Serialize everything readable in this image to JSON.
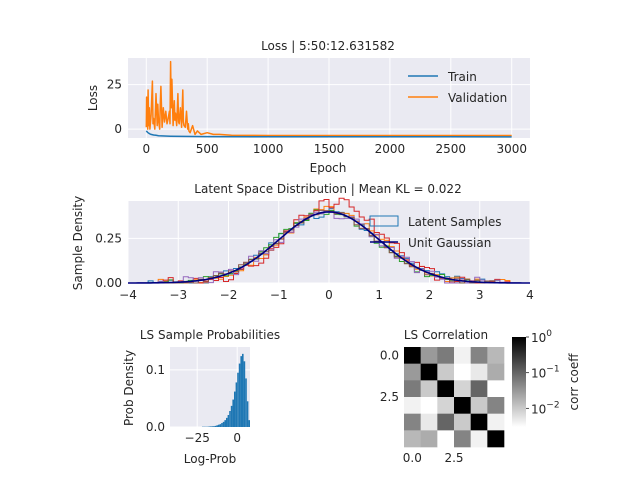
{
  "chart_data": [
    {
      "type": "line",
      "title": "Loss | 5:50:12.631582",
      "xlabel": "Epoch",
      "ylabel": "Loss",
      "xlim": [
        -150,
        3150
      ],
      "ylim": [
        -5,
        40
      ],
      "xticks": [
        0,
        500,
        1000,
        1500,
        2000,
        2500,
        3000
      ],
      "yticks": [
        0,
        25
      ],
      "grid": true,
      "legend": "top-right",
      "series": [
        {
          "name": "Train",
          "color": "#1f77b4",
          "x": [
            0,
            10,
            20,
            30,
            40,
            60,
            80,
            100,
            150,
            200,
            300,
            500,
            1000,
            1500,
            2000,
            2500,
            3000
          ],
          "y": [
            -1,
            -1.8,
            -2.3,
            -2.7,
            -3,
            -3.3,
            -3.5,
            -3.7,
            -3.9,
            -4.0,
            -4.1,
            -4.2,
            -4.3,
            -4.3,
            -4.3,
            -4.35,
            -4.4
          ]
        },
        {
          "name": "Validation",
          "color": "#ff7f0e",
          "x": [
            0,
            3,
            6,
            9,
            12,
            15,
            20,
            25,
            30,
            40,
            50,
            55,
            60,
            70,
            80,
            90,
            95,
            100,
            110,
            115,
            120,
            130,
            140,
            150,
            160,
            170,
            180,
            190,
            195,
            200,
            205,
            210,
            220,
            230,
            235,
            240,
            250,
            260,
            265,
            270,
            280,
            290,
            300,
            305,
            310,
            320,
            330,
            340,
            345,
            350,
            360,
            380,
            400,
            420,
            450,
            500,
            550,
            600,
            700,
            1000,
            1500,
            2000,
            2500,
            3000
          ],
          "y": [
            1,
            18,
            3,
            15,
            0,
            22,
            2,
            12,
            0,
            8,
            27,
            3,
            6,
            0,
            20,
            2,
            14,
            5,
            0,
            15,
            24,
            1,
            12,
            4,
            10,
            3,
            6,
            10,
            3,
            38,
            12,
            28,
            2,
            16,
            5,
            9,
            2,
            20,
            4,
            3,
            12,
            1,
            22,
            4,
            2,
            1,
            10,
            0,
            3,
            -1,
            -2,
            2,
            -3,
            -1,
            -3,
            -2,
            -3,
            -3,
            -3.5,
            -3.6,
            -3.6,
            -3.6,
            -3.6,
            -3.6
          ]
        }
      ]
    },
    {
      "type": "histogram",
      "title": "Latent Space Distribution | Mean KL = 0.022",
      "xlabel": "",
      "ylabel": "Sample Density",
      "xlim": [
        -4,
        4
      ],
      "ylim": [
        0,
        0.46
      ],
      "xticks": [
        -4,
        -3,
        -2,
        -1,
        0,
        1,
        2,
        3,
        4
      ],
      "yticks": [
        0.0,
        0.25
      ],
      "ytick_labels": [
        "0.00",
        "0.25"
      ],
      "grid": true,
      "legend": "top-right",
      "legend_entries": [
        {
          "name": "Latent Samples",
          "color": "#1f77b4"
        },
        {
          "name": "Unit Gaussian",
          "color": "#000080"
        }
      ],
      "series": [
        {
          "name": "Latent Samples",
          "color": "#1f77b4",
          "mu": 0.0,
          "sigma": 1.0,
          "peak_scale": 1.0,
          "jitter": 0.025,
          "seed": 3
        },
        {
          "name": "",
          "color": "#ff7f0e",
          "mu": 0.05,
          "sigma": 0.98,
          "peak_scale": 1.02,
          "jitter": 0.02,
          "seed": 7
        },
        {
          "name": "",
          "color": "#2ca02c",
          "mu": -0.05,
          "sigma": 1.0,
          "peak_scale": 1.0,
          "jitter": 0.02,
          "seed": 11
        },
        {
          "name": "",
          "color": "#d62728",
          "mu": 0.12,
          "sigma": 0.95,
          "peak_scale": 1.08,
          "jitter": 0.03,
          "seed": 19
        },
        {
          "name": "",
          "color": "#9467bd",
          "mu": 0.0,
          "sigma": 1.02,
          "peak_scale": 0.98,
          "jitter": 0.03,
          "seed": 23
        },
        {
          "name": "",
          "color": "#8c564b",
          "mu": -0.02,
          "sigma": 1.0,
          "peak_scale": 1.0,
          "jitter": 0.015,
          "seed": 29
        }
      ],
      "reference_curve": {
        "name": "Unit Gaussian",
        "color": "#000080",
        "mu": 0,
        "sigma": 1
      }
    },
    {
      "type": "histogram",
      "title": "LS Sample Probabilities",
      "xlabel": "Log-Prob",
      "ylabel": "Prob Density",
      "xlim": [
        -42,
        8
      ],
      "ylim": [
        0,
        0.14
      ],
      "xticks": [
        -25,
        0
      ],
      "yticks": [
        0.0,
        0.1
      ],
      "grid": true,
      "color": "#1f77b4",
      "bins": {
        "start": -22,
        "width": 1,
        "values": [
          0.0005,
          0.0005,
          0.0005,
          0.0005,
          0.0008,
          0.001,
          0.0012,
          0.0015,
          0.002,
          0.003,
          0.004,
          0.005,
          0.007,
          0.009,
          0.012,
          0.016,
          0.021,
          0.028,
          0.037,
          0.048,
          0.062,
          0.078,
          0.095,
          0.111,
          0.124,
          0.128,
          0.115,
          0.085,
          0.045,
          0.012
        ]
      }
    },
    {
      "type": "heatmap",
      "title": "LS Correlation",
      "xlabel": "",
      "ylabel": "",
      "xticks": [
        0.0,
        2.5
      ],
      "yticks": [
        0.0,
        2.5
      ],
      "scale": "log",
      "colormap": "gray_r",
      "matrix": [
        [
          1,
          0.03,
          0.06,
          0.004,
          0.05,
          0.015
        ],
        [
          0.03,
          1,
          0.01,
          0.003,
          0.005,
          0.02
        ],
        [
          0.06,
          0.01,
          1,
          0.008,
          0.1,
          0.003
        ],
        [
          0.004,
          0.003,
          0.008,
          1,
          0.01,
          0.05
        ],
        [
          0.05,
          0.005,
          0.1,
          0.01,
          1,
          0.004
        ],
        [
          0.015,
          0.02,
          0.003,
          0.05,
          0.004,
          1
        ]
      ],
      "colorbar": {
        "label": "corr coeff",
        "ticks": [
          {
            "base": "10",
            "exp": "0",
            "value": 1
          },
          {
            "base": "10",
            "exp": "−1",
            "value": 0.1
          },
          {
            "base": "10",
            "exp": "−2",
            "value": 0.01
          }
        ],
        "range": [
          0.003,
          1
        ]
      }
    }
  ]
}
